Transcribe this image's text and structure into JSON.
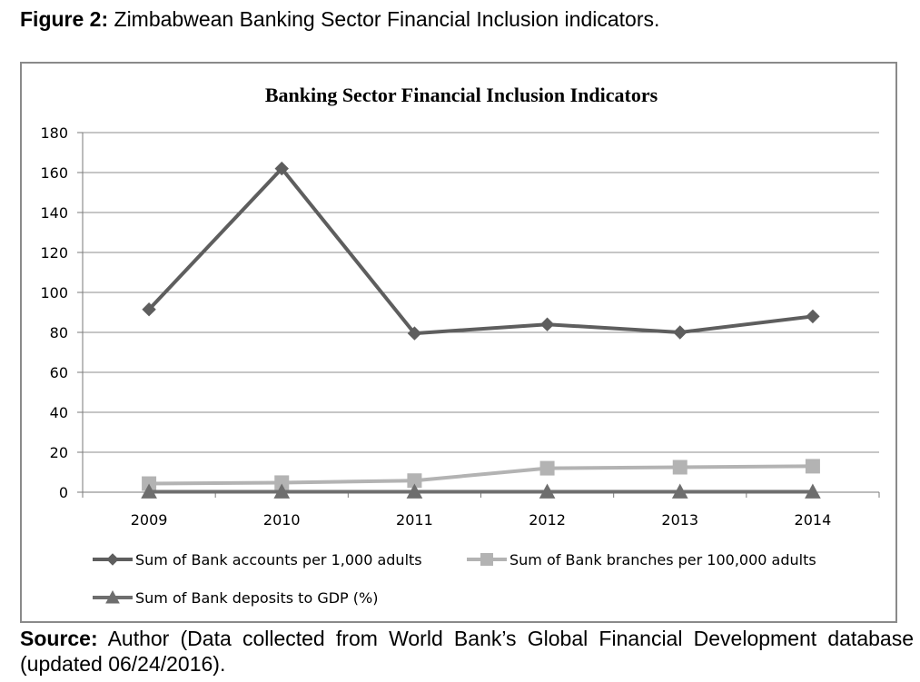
{
  "figure": {
    "label": "Figure 2:",
    "caption": "Zimbabwean Banking Sector Financial Inclusion indicators."
  },
  "source": {
    "label": "Source:",
    "text": "Author (Data collected from World Bank’s Global Financial Development database (updated 06/24/2016)."
  },
  "chart_data": {
    "type": "line",
    "title": "Banking Sector Financial Inclusion Indicators",
    "xlabel": "",
    "ylabel": "",
    "categories": [
      "2009",
      "2010",
      "2011",
      "2012",
      "2013",
      "2014"
    ],
    "ylim": [
      0,
      180
    ],
    "yticks": [
      0,
      20,
      40,
      60,
      80,
      100,
      120,
      140,
      160,
      180
    ],
    "grid": true,
    "legend_position": "bottom",
    "series": [
      {
        "name": "Sum of Bank accounts per 1,000 adults",
        "values": [
          91.5,
          162,
          79.5,
          84,
          80,
          88
        ],
        "color": "#5e5e5e",
        "marker": "diamond"
      },
      {
        "name": "Sum of Bank branches per 100,000 adults",
        "values": [
          4.3,
          4.8,
          5.8,
          12,
          12.5,
          13
        ],
        "color": "#b3b3b3",
        "marker": "square"
      },
      {
        "name": "Sum of Bank deposits to GDP (%)",
        "values": [
          0.2,
          0.2,
          0.2,
          0.2,
          0.2,
          0.2
        ],
        "color": "#6e6e6e",
        "marker": "triangle"
      }
    ]
  }
}
